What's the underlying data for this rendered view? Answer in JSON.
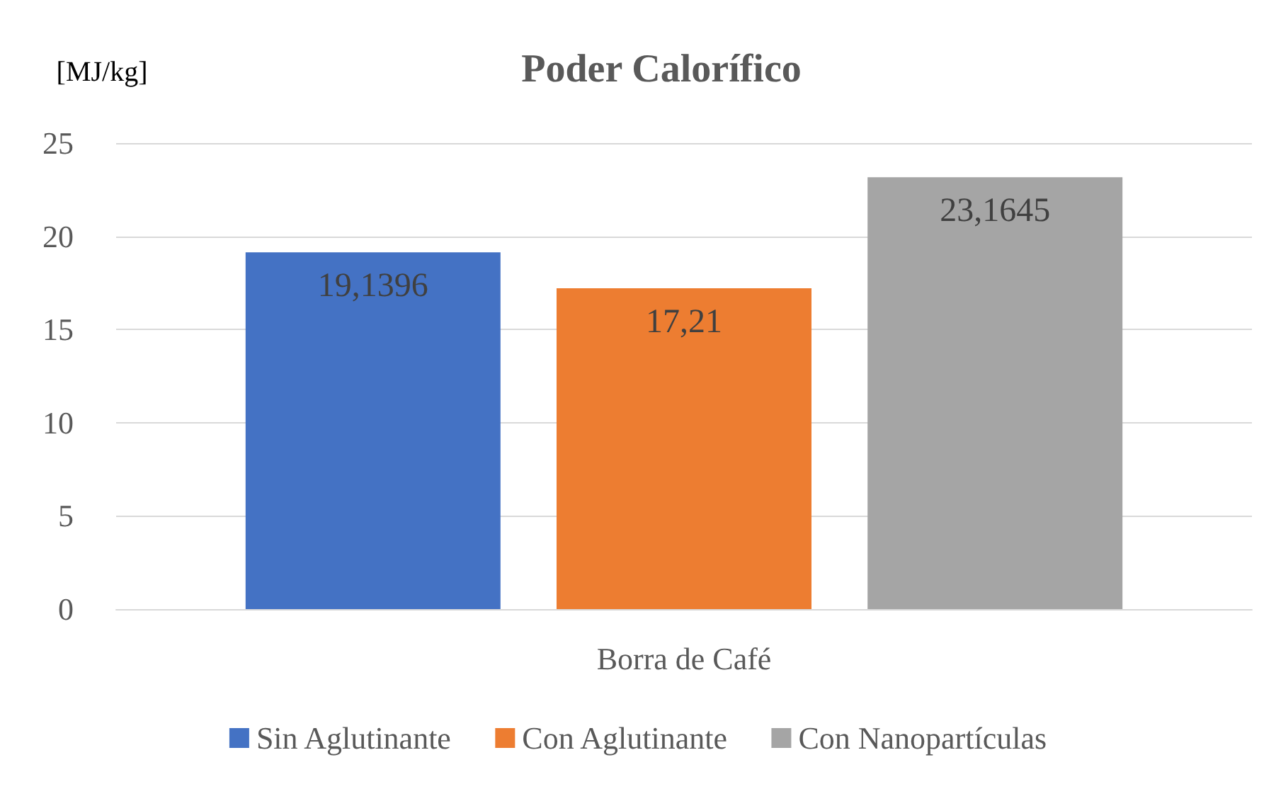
{
  "chart_data": {
    "type": "bar",
    "title": "Poder Calorífico",
    "ylabel": "[MJ/kg]",
    "categories": [
      "Borra de Café"
    ],
    "series": [
      {
        "name": "Sin Aglutinante",
        "color": "#4472c4",
        "values": [
          19.1396
        ],
        "value_labels": [
          "19,1396"
        ]
      },
      {
        "name": "Con Aglutinante",
        "color": "#ed7d31",
        "values": [
          17.21
        ],
        "value_labels": [
          "17,21"
        ]
      },
      {
        "name": "Con Nanopartículas",
        "color": "#a5a5a5",
        "values": [
          23.1645
        ],
        "value_labels": [
          "23,1645"
        ]
      }
    ],
    "ylim": [
      0,
      25
    ],
    "yticks": [
      0,
      5,
      10,
      15,
      20,
      25
    ],
    "grid": "y",
    "legend": "bottom"
  }
}
